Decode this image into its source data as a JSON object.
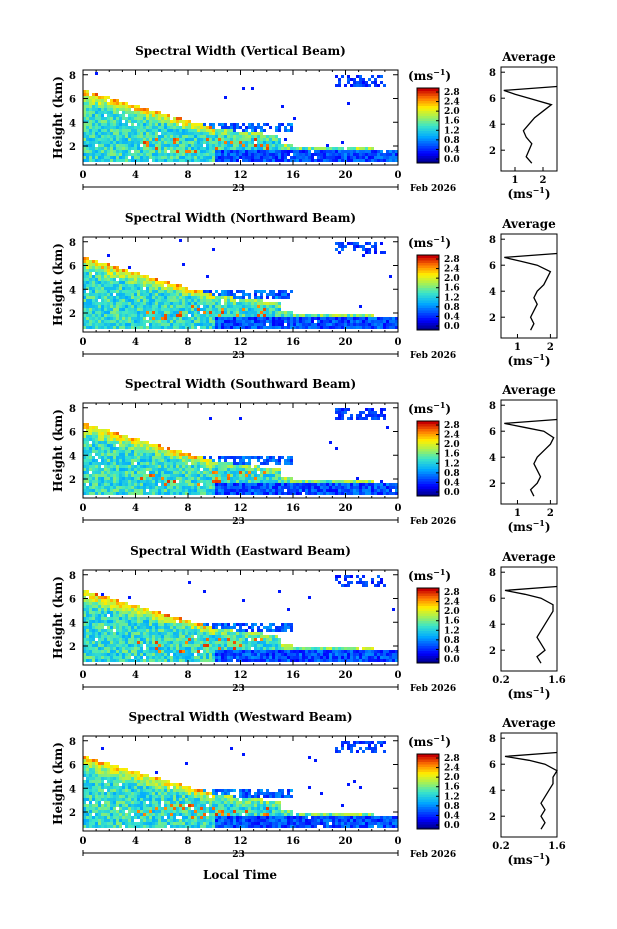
{
  "figure": {
    "bottom_xlabel": "Local Time",
    "date_day": "23",
    "date_label": "Feb 2026",
    "unit_label": "(ms",
    "unit_exp": "−1",
    "unit_close": ")"
  },
  "chart_data": [
    {
      "type": "heatmap",
      "title": "Spectral Width (Vertical Beam)",
      "xlabel": "",
      "ylabel": "Height (km)",
      "xlim": [
        0,
        24
      ],
      "ylim": [
        0.4,
        8.4
      ],
      "x_ticks": [
        "0",
        "4",
        "8",
        "12",
        "16",
        "20",
        "0"
      ],
      "y_ticks": [
        "2",
        "4",
        "6",
        "8"
      ],
      "colorbar": {
        "ticks": [
          "0.0",
          "0.4",
          "0.8",
          "1.2",
          "1.6",
          "2.0",
          "2.4",
          "2.8"
        ],
        "range": [
          0,
          3.0
        ]
      },
      "average_profile": {
        "title": "Average",
        "xlabel": "(ms",
        "x_ticks": [
          "1",
          "2"
        ],
        "xlim": [
          0.5,
          2.5
        ],
        "y_ticks": [
          "2",
          "4",
          "6",
          "8"
        ],
        "ylim": [
          0.4,
          8.4
        ],
        "heights": [
          1.0,
          1.5,
          2.0,
          2.5,
          3.0,
          3.5,
          4.0,
          4.5,
          5.0,
          5.5,
          6.0,
          6.3,
          6.6
        ],
        "values": [
          1.6,
          1.4,
          1.5,
          1.6,
          1.4,
          1.3,
          1.5,
          1.7,
          2.0,
          2.3,
          1.5,
          1.0,
          0.6
        ]
      }
    },
    {
      "type": "heatmap",
      "title": "Spectral Width (Northward Beam)",
      "xlabel": "",
      "ylabel": "Height (km)",
      "xlim": [
        0,
        24
      ],
      "ylim": [
        0.4,
        8.4
      ],
      "x_ticks": [
        "0",
        "4",
        "8",
        "12",
        "16",
        "20",
        "0"
      ],
      "y_ticks": [
        "2",
        "4",
        "6",
        "8"
      ],
      "colorbar": {
        "ticks": [
          "0.0",
          "0.4",
          "0.8",
          "1.2",
          "1.6",
          "2.0",
          "2.4",
          "2.8"
        ],
        "range": [
          0,
          3.0
        ]
      },
      "average_profile": {
        "title": "Average",
        "xlabel": "(ms",
        "x_ticks": [
          "1",
          "2"
        ],
        "xlim": [
          0.5,
          2.2
        ],
        "y_ticks": [
          "2",
          "4",
          "6",
          "8"
        ],
        "ylim": [
          0.4,
          8.4
        ],
        "heights": [
          1.0,
          1.5,
          2.0,
          2.5,
          3.0,
          3.5,
          4.0,
          4.5,
          5.0,
          5.5,
          6.0,
          6.3,
          6.6
        ],
        "values": [
          1.4,
          1.5,
          1.4,
          1.5,
          1.6,
          1.5,
          1.6,
          1.8,
          1.9,
          2.0,
          1.6,
          1.1,
          0.6
        ]
      }
    },
    {
      "type": "heatmap",
      "title": "Spectral Width (Southward Beam)",
      "xlabel": "",
      "ylabel": "Height (km)",
      "xlim": [
        0,
        24
      ],
      "ylim": [
        0.4,
        8.4
      ],
      "x_ticks": [
        "0",
        "4",
        "8",
        "12",
        "16",
        "20",
        "0"
      ],
      "y_ticks": [
        "2",
        "4",
        "6",
        "8"
      ],
      "colorbar": {
        "ticks": [
          "0.0",
          "0.4",
          "0.8",
          "1.2",
          "1.6",
          "2.0",
          "2.4",
          "2.8"
        ],
        "range": [
          0,
          3.0
        ]
      },
      "average_profile": {
        "title": "Average",
        "xlabel": "(ms",
        "x_ticks": [
          "1",
          "2"
        ],
        "xlim": [
          0.5,
          2.2
        ],
        "y_ticks": [
          "2",
          "4",
          "6",
          "8"
        ],
        "ylim": [
          0.4,
          8.4
        ],
        "heights": [
          1.0,
          1.5,
          2.0,
          2.5,
          3.0,
          3.5,
          4.0,
          4.5,
          5.0,
          5.5,
          6.0,
          6.3,
          6.6
        ],
        "values": [
          1.5,
          1.4,
          1.6,
          1.7,
          1.6,
          1.5,
          1.6,
          1.8,
          2.0,
          2.1,
          1.8,
          1.2,
          0.6
        ]
      }
    },
    {
      "type": "heatmap",
      "title": "Spectral Width (Eastward Beam)",
      "xlabel": "",
      "ylabel": "Height (km)",
      "xlim": [
        0,
        24
      ],
      "ylim": [
        0.4,
        8.4
      ],
      "x_ticks": [
        "0",
        "4",
        "8",
        "12",
        "16",
        "20",
        "0"
      ],
      "y_ticks": [
        "2",
        "4",
        "6",
        "8"
      ],
      "colorbar": {
        "ticks": [
          "0.0",
          "0.4",
          "0.8",
          "1.2",
          "1.6",
          "2.0",
          "2.4",
          "2.8"
        ],
        "range": [
          0,
          3.0
        ]
      },
      "average_profile": {
        "title": "Average",
        "xlabel": "(ms",
        "x_ticks": [
          "0.2",
          "1.6"
        ],
        "xlim": [
          0.2,
          1.6
        ],
        "y_ticks": [
          "2",
          "4",
          "6",
          "8"
        ],
        "ylim": [
          0.4,
          8.4
        ],
        "heights": [
          1.0,
          1.5,
          2.0,
          2.5,
          3.0,
          3.5,
          4.0,
          4.5,
          5.0,
          5.5,
          6.0,
          6.3,
          6.6
        ],
        "values": [
          1.2,
          1.1,
          1.3,
          1.2,
          1.1,
          1.2,
          1.3,
          1.4,
          1.5,
          1.5,
          1.2,
          0.8,
          0.3
        ]
      }
    },
    {
      "type": "heatmap",
      "title": "Spectral Width (Westward Beam)",
      "xlabel": "Local Time",
      "ylabel": "Height (km)",
      "xlim": [
        0,
        24
      ],
      "ylim": [
        0.4,
        8.4
      ],
      "x_ticks": [
        "0",
        "4",
        "8",
        "12",
        "16",
        "20",
        "0"
      ],
      "y_ticks": [
        "2",
        "4",
        "6",
        "8"
      ],
      "colorbar": {
        "ticks": [
          "0.0",
          "0.4",
          "0.8",
          "1.2",
          "1.6",
          "2.0",
          "2.4",
          "2.8"
        ],
        "range": [
          0,
          3.0
        ]
      },
      "average_profile": {
        "title": "Average",
        "xlabel": "(ms",
        "x_ticks": [
          "0.2",
          "1.6"
        ],
        "xlim": [
          0.2,
          1.6
        ],
        "y_ticks": [
          "2",
          "4",
          "6",
          "8"
        ],
        "ylim": [
          0.4,
          8.4
        ],
        "heights": [
          1.0,
          1.5,
          2.0,
          2.5,
          3.0,
          3.5,
          4.0,
          4.5,
          5.0,
          5.5,
          6.0,
          6.3,
          6.6
        ],
        "values": [
          1.2,
          1.3,
          1.2,
          1.3,
          1.2,
          1.3,
          1.4,
          1.5,
          1.5,
          1.6,
          1.3,
          0.9,
          0.3
        ]
      }
    }
  ]
}
